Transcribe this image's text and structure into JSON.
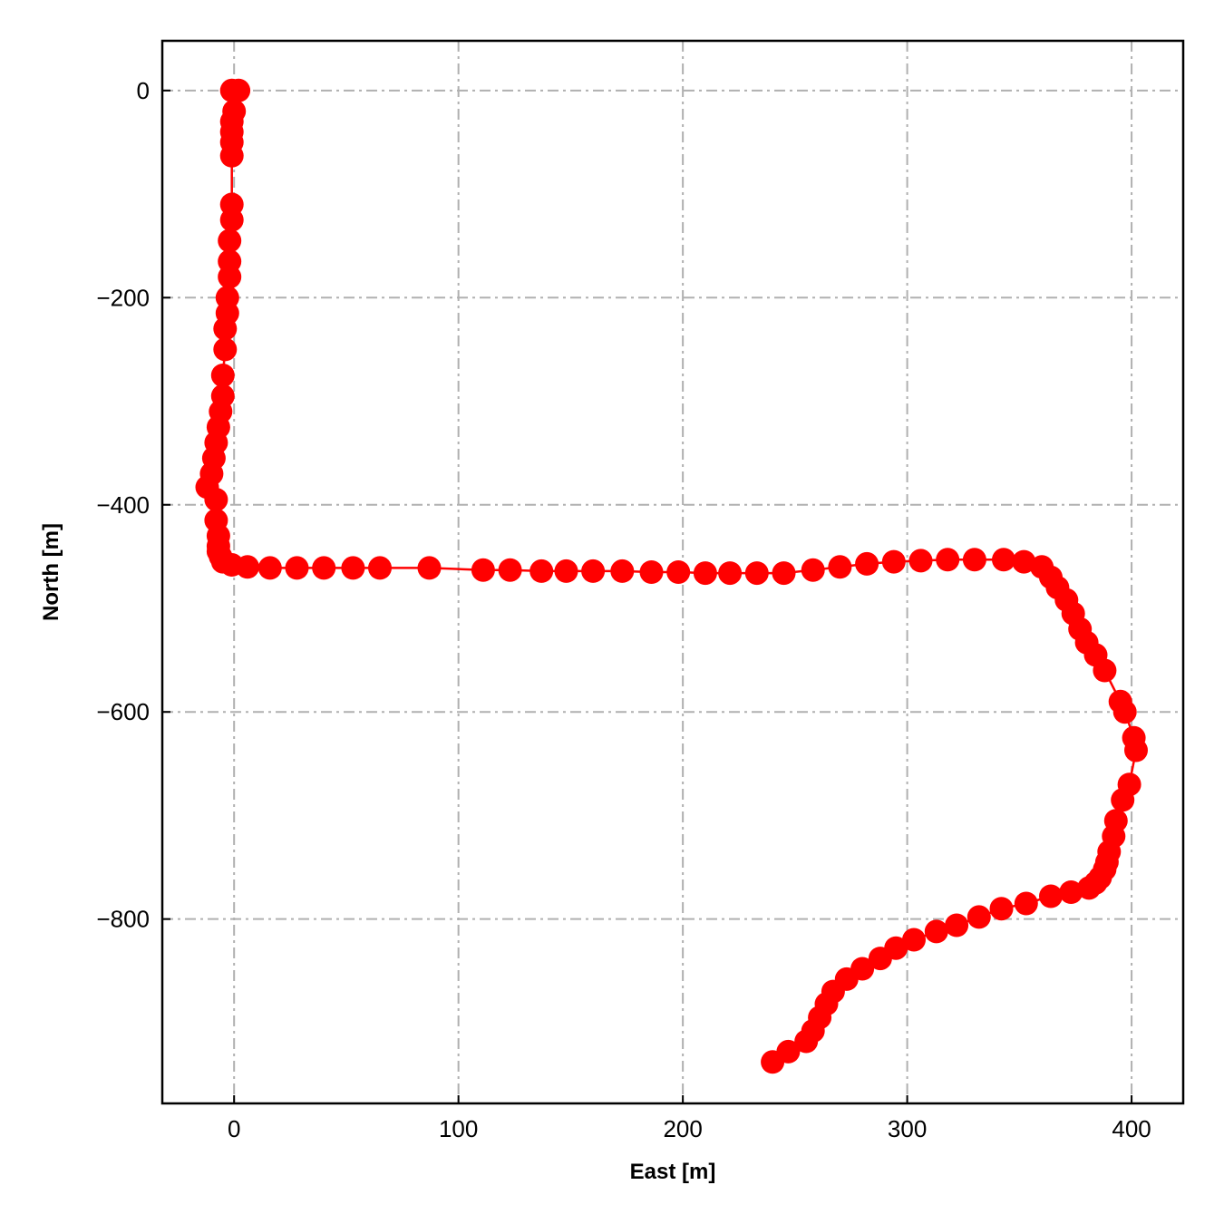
{
  "chart_data": {
    "type": "line",
    "title": "",
    "xlabel": "East [m]",
    "ylabel": "North [m]",
    "xlim": [
      -32,
      423
    ],
    "ylim": [
      -978,
      48
    ],
    "xticks": [
      0,
      100,
      200,
      300,
      400
    ],
    "yticks": [
      0,
      -200,
      -400,
      -600,
      -800
    ],
    "xtick_labels": [
      "0",
      "100",
      "200",
      "300",
      "400"
    ],
    "ytick_labels": [
      "0",
      "−200",
      "−400",
      "−600",
      "−800"
    ],
    "grid": true,
    "marker": "circle",
    "series": [
      {
        "color": "#ff0000",
        "x": [
          -1,
          2,
          0,
          -1,
          -1,
          -1,
          -1,
          -1,
          -1,
          -2,
          -2,
          -2,
          -3,
          -3,
          -4,
          -4,
          -5,
          -5,
          -6,
          -7,
          -8,
          -9,
          -10,
          -12,
          -8,
          -8,
          -7,
          -7,
          -7,
          -6,
          -5,
          -1,
          6,
          16,
          28,
          40,
          53,
          65,
          87,
          111,
          123,
          137,
          148,
          160,
          173,
          186,
          198,
          210,
          221,
          233,
          245,
          258,
          270,
          282,
          294,
          306,
          318,
          330,
          343,
          352,
          360,
          364,
          367,
          371,
          374,
          377,
          380,
          384,
          388,
          395,
          397,
          401,
          402,
          399,
          396,
          393,
          392,
          390,
          389,
          388,
          386,
          384,
          381,
          373,
          364,
          353,
          342,
          332,
          322,
          313,
          303,
          295,
          288,
          280,
          273,
          267,
          264,
          261,
          258,
          255,
          247,
          240
        ],
        "y": [
          0,
          0,
          -20,
          -30,
          -40,
          -50,
          -63,
          -110,
          -125,
          -145,
          -165,
          -180,
          -200,
          -215,
          -230,
          -250,
          -275,
          -295,
          -310,
          -325,
          -340,
          -355,
          -370,
          -383,
          -395,
          -415,
          -430,
          -440,
          -445,
          -450,
          -455,
          -458,
          -460,
          -461,
          -461,
          -461,
          -461,
          -461,
          -461,
          -463,
          -463,
          -464,
          -464,
          -464,
          -464,
          -465,
          -465,
          -466,
          -466,
          -466,
          -466,
          -463,
          -460,
          -457,
          -455,
          -454,
          -453,
          -453,
          -453,
          -455,
          -460,
          -470,
          -480,
          -492,
          -505,
          -520,
          -533,
          -545,
          -560,
          -590,
          -600,
          -625,
          -637,
          -670,
          -685,
          -705,
          -720,
          -735,
          -745,
          -752,
          -760,
          -765,
          -770,
          -774,
          -778,
          -785,
          -790,
          -798,
          -806,
          -812,
          -820,
          -828,
          -838,
          -848,
          -858,
          -870,
          -882,
          -895,
          -908,
          -918,
          -928,
          -938
        ]
      }
    ]
  }
}
